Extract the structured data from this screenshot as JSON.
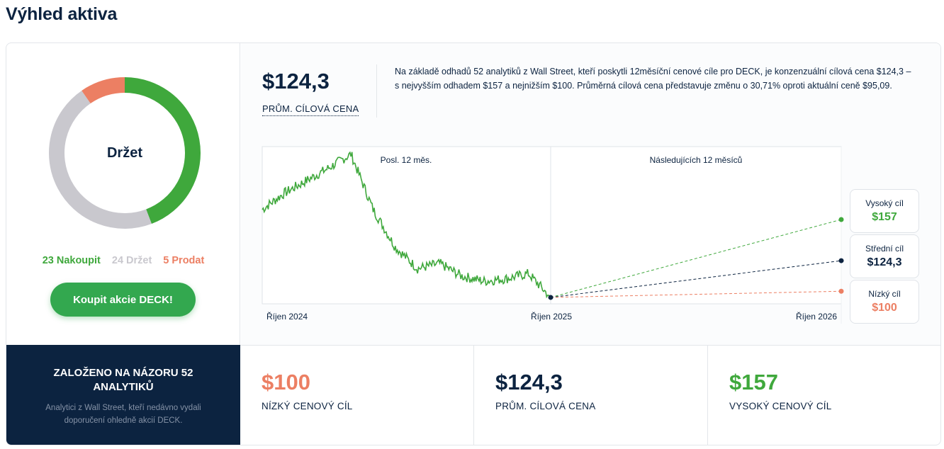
{
  "page": {
    "title": "Výhled aktiva"
  },
  "rating": {
    "consensus": "Držet",
    "buy_count": "23 Nakoupit",
    "hold_count": "24 Držet",
    "sell_count": "5 Prodat",
    "buy": 23,
    "hold": 24,
    "sell": 5,
    "colors": {
      "buy": "#3fa83c",
      "hold": "#c9c8ce",
      "sell": "#ec7f63"
    },
    "cta_label": "Koupit akcie DECK!"
  },
  "forecast": {
    "avg_price": "$124,3",
    "avg_label": "PRŮM. CÍLOVÁ CENA",
    "summary": "Na základě odhadů 52 analytiků z Wall Street, kteří poskytli 12měsíční cenové cíle pro DECK, je konzenzuální cílová cena $124,3 – s nejvyšším odhadem $157 a nejnižším $100. Průměrná cílová cena představuje změnu o 30,71% oproti aktuální ceně $95,09."
  },
  "chart_data": {
    "type": "line",
    "sections": [
      "Posl. 12 měs.",
      "Následujících 12 měsíců"
    ],
    "x_labels": [
      "Říjen 2024",
      "Říjen 2025",
      "Říjen 2026"
    ],
    "current_price": 95.09,
    "ylim": [
      90,
      215
    ],
    "history": {
      "name": "",
      "x": [
        "2024-10",
        "2024-11",
        "2024-12",
        "2025-01",
        "2025-01-late",
        "2025-02",
        "2025-03",
        "2025-04",
        "2025-05",
        "2025-06",
        "2025-07",
        "2025-08",
        "2025-09",
        "2025-10"
      ],
      "values": [
        165,
        178,
        188,
        198,
        209,
        165,
        135,
        118,
        122,
        112,
        108,
        110,
        114,
        95.09
      ]
    },
    "projections": [
      {
        "label": "Vysoký cíl",
        "value": 157,
        "display": "$157",
        "color": "#3fa83c"
      },
      {
        "label": "Střední cíl",
        "value": 124.3,
        "display": "$124,3",
        "color": "#0c2340"
      },
      {
        "label": "Nízký cíl",
        "value": 100,
        "display": "$100",
        "color": "#ec7f63"
      }
    ]
  },
  "bottom": {
    "title": "ZALOŽENO NA NÁZORU 52 ANALYTIKŮ",
    "text": "Analytici z Wall Street, kteří nedávno vydali doporučení ohledně akcií DECK.",
    "stats": [
      {
        "value": "$100",
        "label": "NÍZKÝ CENOVÝ CÍL",
        "color": "#ec7f63"
      },
      {
        "value": "$124,3",
        "label": "PRŮM. CÍLOVÁ CENA",
        "color": "#0c2340"
      },
      {
        "value": "$157",
        "label": "VYSOKÝ CENOVÝ CÍL",
        "color": "#3fa83c"
      }
    ]
  }
}
